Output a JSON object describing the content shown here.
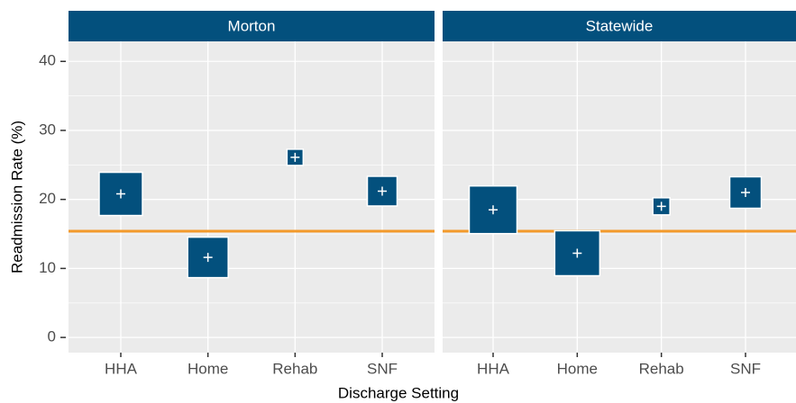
{
  "chart_data": {
    "type": "square-point",
    "x_label": "Discharge Setting",
    "y_label": "Readmission Rate (%)",
    "categories": [
      "HHA",
      "Home",
      "Rehab",
      "SNF"
    ],
    "ylim": [
      -2.2,
      42.9
    ],
    "yticks": [
      0,
      10,
      20,
      30,
      40
    ],
    "minor_yticks": [
      5,
      15,
      25,
      35
    ],
    "grid": true,
    "color": "#03507d",
    "strip_color": "#03507d",
    "reference_line": 15.4,
    "reference_color": "#f39a2b",
    "panels": [
      {
        "title": "Morton",
        "values": [
          20.8,
          11.6,
          26.1,
          21.2
        ],
        "sizes": [
          48,
          45,
          18,
          33
        ]
      },
      {
        "title": "Statewide",
        "values": [
          18.5,
          12.2,
          19.0,
          21.0
        ],
        "sizes": [
          53,
          50,
          19,
          35
        ]
      }
    ]
  }
}
